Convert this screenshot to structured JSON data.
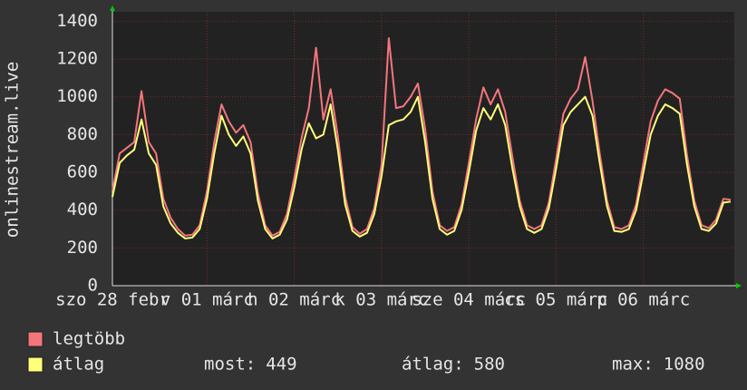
{
  "chart_data": {
    "type": "line",
    "y_label": "onlinestream.live",
    "x": [
      0,
      2,
      4,
      6,
      8,
      10,
      12,
      14,
      16,
      18,
      20,
      22,
      24,
      26,
      28,
      30,
      32,
      34,
      36,
      38,
      40,
      42,
      44,
      46,
      48,
      50,
      52,
      54,
      56,
      58,
      60,
      62,
      64,
      66,
      68,
      70,
      72,
      74,
      76,
      78,
      80,
      82,
      84,
      86,
      88,
      90,
      92,
      94,
      96,
      98,
      100,
      102,
      104,
      106,
      108,
      110,
      112,
      114,
      116,
      118,
      120,
      122,
      124,
      126,
      128,
      130,
      132,
      134,
      136,
      138,
      140,
      142,
      144,
      146,
      148,
      150,
      152,
      154,
      156,
      158,
      160,
      162,
      164,
      166,
      168,
      170
    ],
    "series": [
      {
        "name": "legtöbb",
        "color": "#f4767d",
        "values": [
          500,
          700,
          730,
          760,
          1030,
          760,
          700,
          460,
          360,
          300,
          265,
          270,
          320,
          500,
          760,
          960,
          870,
          810,
          850,
          760,
          490,
          320,
          265,
          285,
          380,
          570,
          780,
          940,
          1260,
          880,
          1040,
          790,
          470,
          310,
          275,
          300,
          410,
          640,
          1310,
          940,
          950,
          1000,
          1070,
          830,
          500,
          320,
          290,
          310,
          430,
          650,
          880,
          1050,
          960,
          1040,
          920,
          680,
          450,
          320,
          300,
          320,
          440,
          670,
          910,
          990,
          1040,
          1210,
          980,
          700,
          450,
          310,
          300,
          320,
          430,
          650,
          870,
          980,
          1040,
          1020,
          990,
          690,
          450,
          320,
          305,
          350,
          460,
          455
        ]
      },
      {
        "name": "átlag",
        "color": "#ffff7a",
        "values": [
          470,
          650,
          690,
          720,
          880,
          700,
          640,
          420,
          330,
          280,
          250,
          255,
          300,
          460,
          700,
          900,
          800,
          740,
          790,
          700,
          450,
          300,
          250,
          270,
          350,
          520,
          720,
          860,
          780,
          800,
          960,
          720,
          430,
          290,
          260,
          280,
          380,
          580,
          850,
          870,
          880,
          920,
          1000,
          760,
          460,
          300,
          270,
          290,
          400,
          600,
          820,
          940,
          880,
          960,
          850,
          620,
          420,
          300,
          280,
          300,
          410,
          620,
          850,
          920,
          960,
          1000,
          900,
          650,
          420,
          290,
          285,
          300,
          400,
          600,
          800,
          900,
          960,
          940,
          910,
          640,
          420,
          300,
          290,
          330,
          440,
          445
        ]
      }
    ],
    "xlim": [
      0,
      171
    ],
    "xticks": [
      {
        "value": 0,
        "label": "szo 28 febr"
      },
      {
        "value": 26,
        "label": "v 01 márc"
      },
      {
        "value": 50,
        "label": "h 02 márc"
      },
      {
        "value": 74,
        "label": "k 03 márc"
      },
      {
        "value": 98,
        "label": "sze 04 márc"
      },
      {
        "value": 122,
        "label": "cs 05 márc"
      },
      {
        "value": 146,
        "label": "p 06 márc"
      }
    ],
    "ylim": [
      0,
      1450
    ],
    "yticks": [
      0,
      200,
      400,
      600,
      800,
      1000,
      1200,
      1400
    ],
    "grid": true,
    "stats": [
      {
        "label": "most:",
        "value": 449
      },
      {
        "label": "átlag:",
        "value": 580
      },
      {
        "label": "max:",
        "value": 1080
      }
    ]
  }
}
